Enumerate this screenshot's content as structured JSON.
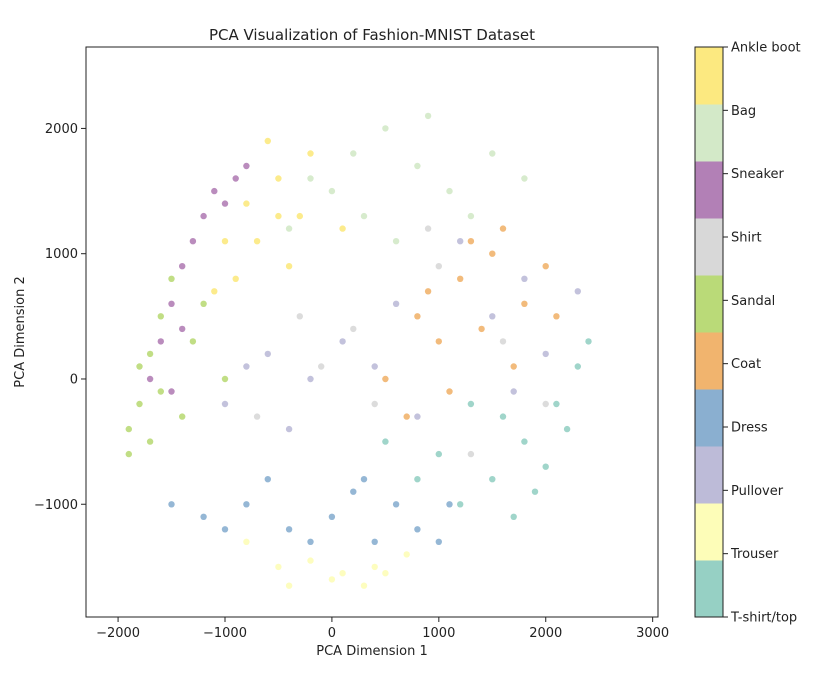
{
  "chart_data": {
    "type": "scatter",
    "title": "PCA Visualization of Fashion-MNIST Dataset",
    "xlabel": "PCA Dimension 1",
    "ylabel": "PCA Dimension 2",
    "xlim": [
      -2300,
      3050
    ],
    "ylim": [
      -1900,
      2650
    ],
    "xticks": [
      -2000,
      -1000,
      0,
      1000,
      2000,
      3000
    ],
    "xtick_labels": [
      "−2000",
      "−1000",
      "0",
      "1000",
      "2000",
      "3000"
    ],
    "yticks": [
      -1000,
      0,
      1000,
      2000
    ],
    "ytick_labels": [
      "−1000",
      "0",
      "1000",
      "2000"
    ],
    "grid": false,
    "legend": "colorbar-right",
    "colorbar_labels": [
      "T-shirt/top",
      "Trouser",
      "Pullover",
      "Dress",
      "Coat",
      "Sandal",
      "Shirt",
      "Sneaker",
      "Bag",
      "Ankle boot"
    ],
    "series": [
      {
        "name": "T-shirt/top",
        "color": "#96d0c4",
        "points": [
          [
            1800,
            -500
          ],
          [
            2100,
            -200
          ],
          [
            1500,
            -800
          ],
          [
            2300,
            100
          ],
          [
            1200,
            -1000
          ],
          [
            1900,
            -900
          ],
          [
            2000,
            -700
          ],
          [
            1000,
            -600
          ],
          [
            1600,
            -300
          ],
          [
            2200,
            -400
          ],
          [
            1300,
            -200
          ],
          [
            800,
            -800
          ],
          [
            500,
            -500
          ],
          [
            2400,
            300
          ],
          [
            1700,
            -1100
          ]
        ]
      },
      {
        "name": "Trouser",
        "color": "#fdfdb8",
        "points": [
          [
            -500,
            -1500
          ],
          [
            0,
            -1600
          ],
          [
            500,
            -1550
          ],
          [
            -200,
            -1450
          ],
          [
            300,
            -1650
          ],
          [
            -800,
            -1300
          ],
          [
            700,
            -1400
          ],
          [
            100,
            -1550
          ],
          [
            -400,
            -1650
          ],
          [
            400,
            -1500
          ]
        ]
      },
      {
        "name": "Pullover",
        "color": "#bdbbd8",
        "points": [
          [
            -600,
            200
          ],
          [
            -200,
            0
          ],
          [
            400,
            100
          ],
          [
            1500,
            500
          ],
          [
            2000,
            200
          ],
          [
            -1000,
            -200
          ],
          [
            800,
            -300
          ],
          [
            1800,
            800
          ],
          [
            100,
            300
          ],
          [
            -400,
            -400
          ],
          [
            1200,
            1100
          ],
          [
            2300,
            700
          ],
          [
            600,
            600
          ],
          [
            -800,
            100
          ],
          [
            1700,
            -100
          ]
        ]
      },
      {
        "name": "Dress",
        "color": "#8aafd0",
        "points": [
          [
            -1200,
            -1100
          ],
          [
            -800,
            -1000
          ],
          [
            -400,
            -1200
          ],
          [
            0,
            -1100
          ],
          [
            400,
            -1300
          ],
          [
            800,
            -1200
          ],
          [
            1100,
            -1000
          ],
          [
            -1500,
            -1000
          ],
          [
            200,
            -900
          ],
          [
            600,
            -1000
          ],
          [
            -600,
            -800
          ],
          [
            1000,
            -1300
          ],
          [
            -200,
            -1300
          ],
          [
            300,
            -800
          ],
          [
            -1000,
            -1200
          ]
        ]
      },
      {
        "name": "Coat",
        "color": "#f1b46e",
        "points": [
          [
            800,
            500
          ],
          [
            1200,
            800
          ],
          [
            1500,
            1000
          ],
          [
            1800,
            600
          ],
          [
            1000,
            300
          ],
          [
            1600,
            1200
          ],
          [
            2000,
            900
          ],
          [
            900,
            700
          ],
          [
            1400,
            400
          ],
          [
            1700,
            100
          ],
          [
            1100,
            -100
          ],
          [
            500,
            0
          ],
          [
            2100,
            500
          ],
          [
            1300,
            1100
          ],
          [
            700,
            -300
          ]
        ]
      },
      {
        "name": "Sandal",
        "color": "#bada78",
        "points": [
          [
            -1800,
            -200
          ],
          [
            -1700,
            200
          ],
          [
            -1900,
            -400
          ],
          [
            -1600,
            500
          ],
          [
            -1500,
            800
          ],
          [
            -1400,
            -300
          ],
          [
            -1800,
            100
          ],
          [
            -1300,
            300
          ],
          [
            -1700,
            -500
          ],
          [
            -1200,
            600
          ],
          [
            -1000,
            0
          ],
          [
            -1900,
            -600
          ],
          [
            -1600,
            -100
          ]
        ]
      },
      {
        "name": "Shirt",
        "color": "#d8d8d8",
        "points": [
          [
            -300,
            500
          ],
          [
            200,
            400
          ],
          [
            1000,
            900
          ],
          [
            1600,
            300
          ],
          [
            -700,
            -300
          ],
          [
            400,
            -200
          ],
          [
            1300,
            -600
          ],
          [
            -100,
            100
          ],
          [
            900,
            1200
          ],
          [
            2000,
            -200
          ]
        ]
      },
      {
        "name": "Sneaker",
        "color": "#b280b6",
        "points": [
          [
            -1500,
            600
          ],
          [
            -1400,
            900
          ],
          [
            -1600,
            300
          ],
          [
            -1300,
            1100
          ],
          [
            -1700,
            0
          ],
          [
            -1200,
            1300
          ],
          [
            -1100,
            1500
          ],
          [
            -900,
            1600
          ],
          [
            -1500,
            -100
          ],
          [
            -1000,
            1400
          ],
          [
            -1400,
            400
          ],
          [
            -800,
            1700
          ]
        ]
      },
      {
        "name": "Bag",
        "color": "#d3e9c8",
        "points": [
          [
            200,
            1800
          ],
          [
            500,
            2000
          ],
          [
            800,
            1700
          ],
          [
            -200,
            1600
          ],
          [
            1100,
            1500
          ],
          [
            300,
            1300
          ],
          [
            600,
            1100
          ],
          [
            1500,
            1800
          ],
          [
            900,
            2100
          ],
          [
            0,
            1500
          ],
          [
            1800,
            1600
          ],
          [
            -400,
            1200
          ],
          [
            1300,
            1300
          ]
        ]
      },
      {
        "name": "Ankle boot",
        "color": "#fce980",
        "points": [
          [
            -800,
            1400
          ],
          [
            -500,
            1600
          ],
          [
            -1000,
            1100
          ],
          [
            -600,
            1900
          ],
          [
            -300,
            1300
          ],
          [
            -900,
            800
          ],
          [
            -200,
            1800
          ],
          [
            -700,
            1100
          ],
          [
            -400,
            900
          ],
          [
            -1100,
            700
          ],
          [
            100,
            1200
          ],
          [
            -500,
            1300
          ]
        ]
      }
    ]
  }
}
